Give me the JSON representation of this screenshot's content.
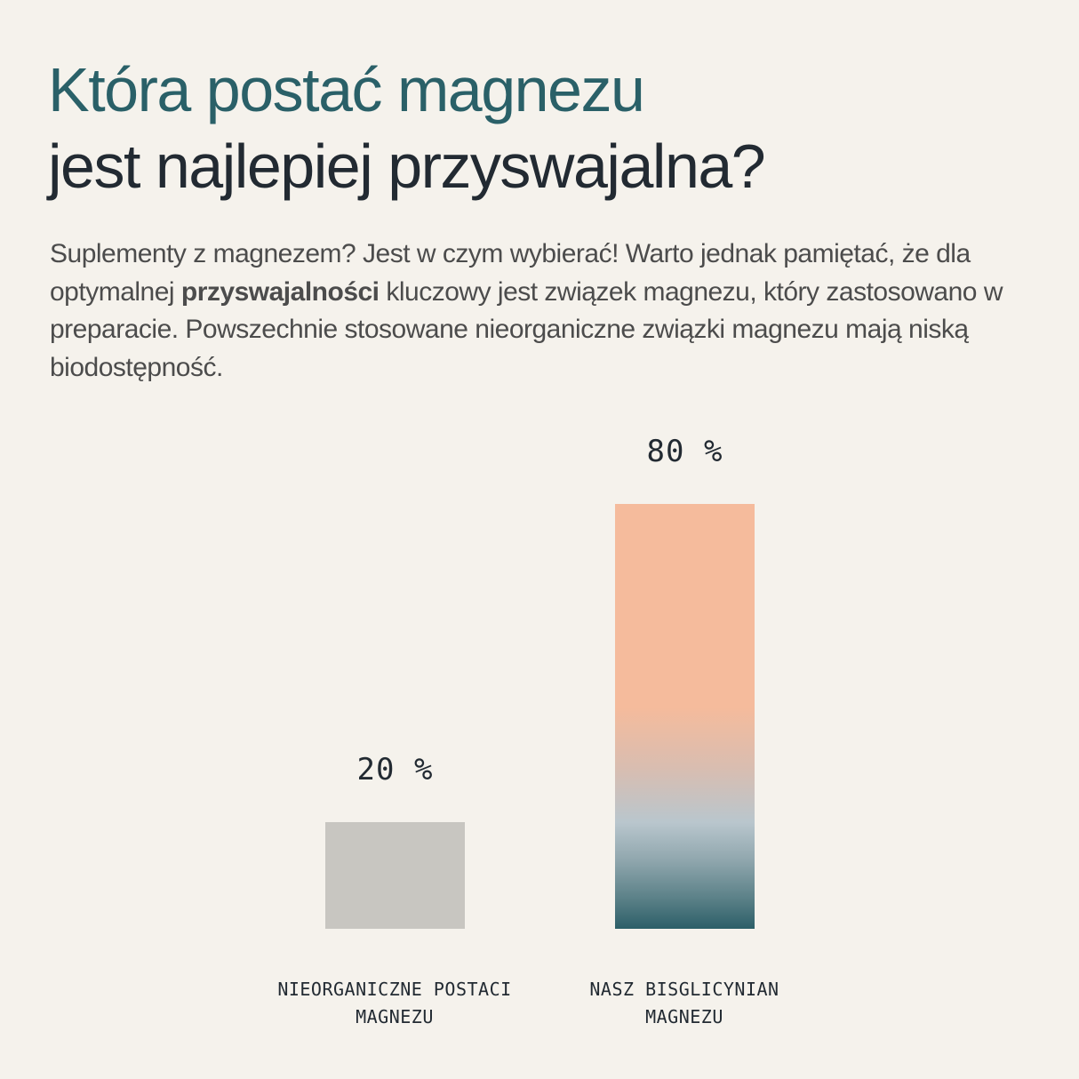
{
  "header": {
    "title_line1": "Która postać magnezu",
    "title_line2": "jest najlepiej przyswajalna?"
  },
  "intro": {
    "text_before_bold": "Suplementy z magnezem? Jest w czym wybierać! Warto jednak pamiętać, że dla optymalnej ",
    "bold": "przyswajalności",
    "text_after_bold": " kluczowy jest związek magnezu, który zastosowano w preparacie. Powszechnie stosowane nieorganiczne związki magnezu mają niską biodostępność."
  },
  "colors": {
    "background": "#F5F2EC",
    "title_accent": "#2A6068",
    "title_dark": "#222A32",
    "bar_inorganic": "#C8C6C1",
    "bar_gradient_top": "#F5BB9C",
    "bar_gradient_mid": "#B9C6CD",
    "bar_gradient_bottom": "#2C5F68"
  },
  "bars": [
    {
      "value_label": "20 %",
      "label_line1": "NIEORGANICZNE POSTACI",
      "label_line2": "MAGNEZU"
    },
    {
      "value_label": "80 %",
      "label_line1": "NASZ BISGLICYNIAN",
      "label_line2": "MAGNEZU"
    }
  ],
  "chart_data": {
    "type": "bar",
    "title": "Która postać magnezu jest najlepiej przyswajalna?",
    "categories": [
      "NIEORGANICZNE POSTACI MAGNEZU",
      "NASZ BISGLICYNIAN MAGNEZU"
    ],
    "values": [
      20,
      80
    ],
    "value_labels": [
      "20 %",
      "80 %"
    ],
    "unit": "%",
    "xlabel": "",
    "ylabel": "",
    "ylim": [
      0,
      100
    ],
    "grid": false,
    "legend": null,
    "bar_colors": [
      "#C8C6C1",
      "gradient(#F5BB9C → #B9C6CD → #2C5F68)"
    ]
  }
}
